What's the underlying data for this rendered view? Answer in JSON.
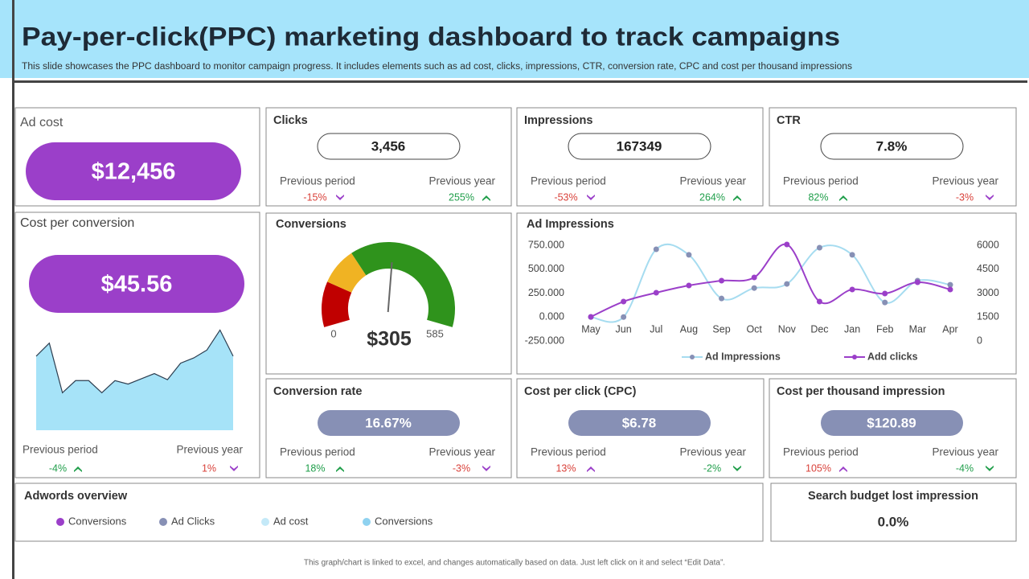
{
  "header": {
    "title": "Pay-per-click(PPC) marketing dashboard to track campaigns",
    "subtitle": "This slide showcases the PPC dashboard to monitor campaign progress. It includes elements such as ad cost, clicks, impressions, CTR, conversion rate, CPC and cost per thousand impressions"
  },
  "ad_cost": {
    "title": "Ad cost",
    "value": "$12,456",
    "pill_color": "#9b3fc9"
  },
  "kpis": [
    {
      "title": "Clicks",
      "value": "3,456",
      "pill_color": "#ffffff",
      "value_color": "#222222",
      "previous_period": {
        "label": "Previous period",
        "change": "-15%",
        "text_color": "#d9413a",
        "arrow": "down",
        "arrow_color": "#9b3fc9"
      },
      "previous_year": {
        "label": "Previous year",
        "change": "255%",
        "text_color": "#1f9e4a",
        "arrow": "up",
        "arrow_color": "#1f9e4a"
      }
    },
    {
      "title": "Impressions",
      "value": "167349",
      "pill_color": "#ffffff",
      "value_color": "#222222",
      "previous_period": {
        "label": "Previous period",
        "change": "-53%",
        "text_color": "#d9413a",
        "arrow": "down",
        "arrow_color": "#9b3fc9"
      },
      "previous_year": {
        "label": "Previous year",
        "change": "264%",
        "text_color": "#1f9e4a",
        "arrow": "up",
        "arrow_color": "#1f9e4a"
      }
    },
    {
      "title": "CTR",
      "value": "7.8%",
      "pill_color": "#ffffff",
      "value_color": "#222222",
      "previous_period": {
        "label": "Previous period",
        "change": "82%",
        "text_color": "#1f9e4a",
        "arrow": "up",
        "arrow_color": "#1f9e4a"
      },
      "previous_year": {
        "label": "Previous year",
        "change": "-3%",
        "text_color": "#d9413a",
        "arrow": "down",
        "arrow_color": "#9b3fc9"
      }
    },
    {
      "title": "Conversion rate",
      "value": "16.67%",
      "pill_color": "#8790b5",
      "value_color": "#ffffff",
      "previous_period": {
        "label": "Previous period",
        "change": "18%",
        "text_color": "#1f9e4a",
        "arrow": "up",
        "arrow_color": "#1f9e4a"
      },
      "previous_year": {
        "label": "Previous year",
        "change": "-3%",
        "text_color": "#d9413a",
        "arrow": "down",
        "arrow_color": "#9b3fc9"
      }
    },
    {
      "title": "Cost per click (CPC)",
      "value": "$6.78",
      "pill_color": "#8790b5",
      "value_color": "#ffffff",
      "previous_period": {
        "label": "Previous period",
        "change": "13%",
        "text_color": "#d9413a",
        "arrow": "up",
        "arrow_color": "#9b3fc9"
      },
      "previous_year": {
        "label": "Previous year",
        "change": "-2%",
        "text_color": "#1f9e4a",
        "arrow": "down",
        "arrow_color": "#1f9e4a"
      }
    },
    {
      "title": "Cost per thousand impression",
      "value": "$120.89",
      "pill_color": "#8790b5",
      "value_color": "#ffffff",
      "previous_period": {
        "label": "Previous period",
        "change": "105%",
        "text_color": "#d9413a",
        "arrow": "up",
        "arrow_color": "#9b3fc9"
      },
      "previous_year": {
        "label": "Previous year",
        "change": "-4%",
        "text_color": "#1f9e4a",
        "arrow": "down",
        "arrow_color": "#1f9e4a"
      }
    }
  ],
  "cost_per_conversion": {
    "title": "Cost per conversion",
    "value": "$45.56",
    "pill_color": "#9b3fc9",
    "sparkline": {
      "values": [
        85,
        100,
        43,
        57,
        57,
        43,
        57,
        53,
        59,
        65,
        58,
        77,
        83,
        92,
        115,
        85
      ],
      "ylim": [
        0,
        120
      ],
      "color": "#a6e3f8",
      "stroke": "#2d3e50"
    },
    "previous_period": {
      "label": "Previous period",
      "change": "-4%",
      "text_color": "#1f9e4a",
      "arrow": "up",
      "arrow_color": "#1f9e4a"
    },
    "previous_year": {
      "label": "Previous year",
      "change": "1%",
      "text_color": "#d9413a",
      "arrow": "down",
      "arrow_color": "#9b3fc9"
    }
  },
  "conversions": {
    "title": "Conversions",
    "min": 0,
    "max": 585,
    "value": 305,
    "value_label": "$305",
    "bands": [
      {
        "to": 110,
        "color": "#c00000"
      },
      {
        "to": 200,
        "color": "#f0b323"
      },
      {
        "to": 585,
        "color": "#2f931c"
      }
    ]
  },
  "ad_impressions": {
    "title": "Ad Impressions",
    "categories": [
      "May",
      "Jun",
      "Jul",
      "Aug",
      "Sep",
      "Oct",
      "Nov",
      "Dec",
      "Jan",
      "Feb",
      "Mar",
      "Apr"
    ],
    "series": [
      {
        "name": "Ad Impressions",
        "color": "#a6dcf0",
        "marker_color": "#8790b5",
        "axis": "y",
        "values": [
          0,
          0,
          708,
          650,
          194,
          303,
          346,
          725,
          650,
          152,
          380,
          337
        ]
      },
      {
        "name": "Add clicks",
        "color": "#9b3fc9",
        "marker_color": "#9b3fc9",
        "axis": "y2",
        "values": [
          1512,
          2470,
          3025,
          3478,
          3780,
          3982,
          6050,
          2470,
          3226,
          2974,
          3680,
          3226
        ]
      }
    ],
    "ylim": [
      -250,
      750
    ],
    "yticks": [
      {
        "value": -250,
        "label": "-250.000"
      },
      {
        "value": 0,
        "label": "0.000"
      },
      {
        "value": 250,
        "label": "250.000"
      },
      {
        "value": 500,
        "label": "500.000"
      },
      {
        "value": 750,
        "label": "750.000"
      }
    ],
    "y2lim": [
      0,
      6000
    ],
    "y2ticks": [
      0,
      1500,
      3000,
      4500,
      6000
    ]
  },
  "adwords_overview": {
    "title": "Adwords overview",
    "legend": [
      {
        "name": "Conversions",
        "color": "#9b3fc9"
      },
      {
        "name": "Ad Clicks",
        "color": "#8790b5"
      },
      {
        "name": "Ad cost",
        "color": "#c4e9f8"
      },
      {
        "name": "Conversions",
        "color": "#8fd2f0"
      }
    ]
  },
  "search_budget": {
    "title": "Search budget lost impression",
    "value": "0.0%"
  },
  "footer": "This graph/chart is linked to excel, and changes automatically based on data. Just left click on it and select “Edit Data”."
}
